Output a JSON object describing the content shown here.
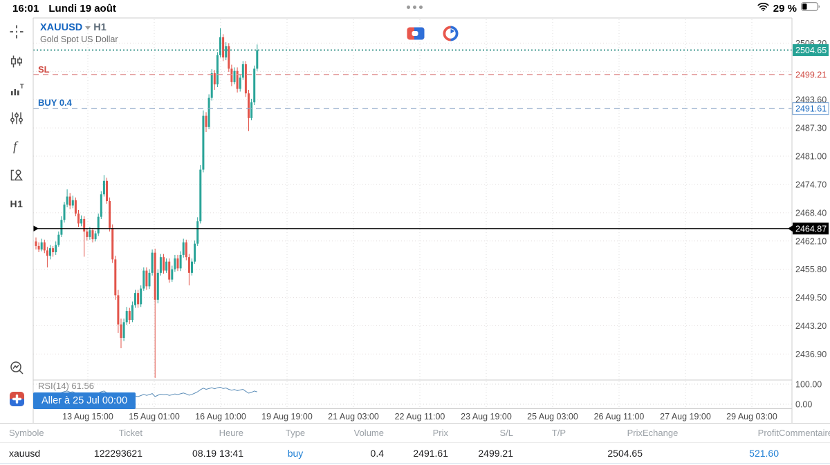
{
  "status_bar": {
    "time": "16:01",
    "date": "Lundi 19 août",
    "battery": "29 %",
    "battery_level": 0.29
  },
  "toolbar": {
    "timeframe_label": "H1"
  },
  "chart_header": {
    "symbol": "XAUUSD",
    "timeframe": "H1",
    "description": "Gold Spot US Dollar"
  },
  "goto_button": {
    "label": "Aller à 25 Jul 00:00"
  },
  "chart_data": {
    "type": "candlestick",
    "symbol": "XAUUSD",
    "timeframe": "H1",
    "colors": {
      "up": "#2aa498",
      "down": "#e2544a",
      "grid": "#e2dcdc",
      "axis_text": "#4f4f4f"
    },
    "y_axis": {
      "tick_top": 2506.2,
      "tick_step": 6.3,
      "tick_count": 12,
      "hidden_tick_labels": [
        2499.9
      ],
      "visible_range": [
        2429.5,
        2511.5
      ]
    },
    "x_axis": {
      "labels": [
        "13 Aug 15:00",
        "15 Aug 01:00",
        "16 Aug 10:00",
        "19 Aug 19:00",
        "21 Aug 03:00",
        "22 Aug 11:00",
        "23 Aug 19:00",
        "25 Aug 03:00",
        "26 Aug 11:00",
        "27 Aug 19:00",
        "29 Aug 03:00"
      ]
    },
    "levels": {
      "current_price": {
        "value": 2504.65,
        "axis_label": "2504.65",
        "color": "#26a295",
        "style": "dotted"
      },
      "stop_loss": {
        "value": 2499.21,
        "label": "SL",
        "axis_label": "2499.21",
        "color": "#cf4a42",
        "line_color": "#e09090",
        "style": "dashed"
      },
      "buy_order": {
        "value": 2491.61,
        "label": "BUY 0.4",
        "axis_label": "2491.61",
        "color": "#1a6ac0",
        "line_color": "#8fa9c8",
        "style": "dashed"
      },
      "crosshair": {
        "value": 2464.87,
        "axis_label": "2464.87",
        "color": "#000000",
        "style": "solid"
      }
    },
    "candles": [
      [
        2462.0,
        2462.9,
        2460.2,
        2461.0
      ],
      [
        2461.0,
        2461.8,
        2459.6,
        2460.2
      ],
      [
        2460.2,
        2462.6,
        2459.8,
        2461.8
      ],
      [
        2461.8,
        2462.4,
        2459.4,
        2460.0
      ],
      [
        2460.0,
        2460.8,
        2456.2,
        2458.8
      ],
      [
        2458.8,
        2461.2,
        2458.0,
        2460.5
      ],
      [
        2460.5,
        2461.0,
        2458.6,
        2459.6
      ],
      [
        2459.6,
        2462.0,
        2459.0,
        2461.2
      ],
      [
        2461.2,
        2464.2,
        2460.8,
        2463.5
      ],
      [
        2463.5,
        2467.6,
        2463.0,
        2466.8
      ],
      [
        2466.8,
        2470.8,
        2466.2,
        2470.2
      ],
      [
        2470.2,
        2473.6,
        2469.6,
        2472.0
      ],
      [
        2472.0,
        2472.8,
        2469.2,
        2470.0
      ],
      [
        2470.0,
        2472.2,
        2469.4,
        2471.2
      ],
      [
        2471.2,
        2471.8,
        2467.6,
        2468.2
      ],
      [
        2468.2,
        2469.0,
        2465.2,
        2466.0
      ],
      [
        2466.0,
        2467.8,
        2465.4,
        2467.0
      ],
      [
        2467.0,
        2467.6,
        2458.6,
        2464.2
      ],
      [
        2464.2,
        2465.0,
        2462.2,
        2463.0
      ],
      [
        2463.0,
        2465.2,
        2462.4,
        2464.5
      ],
      [
        2464.5,
        2465.0,
        2461.8,
        2462.5
      ],
      [
        2462.5,
        2464.4,
        2462.0,
        2463.8
      ],
      [
        2463.8,
        2468.2,
        2463.2,
        2467.5
      ],
      [
        2467.5,
        2473.2,
        2467.0,
        2472.5
      ],
      [
        2472.5,
        2476.8,
        2472.0,
        2475.5
      ],
      [
        2475.5,
        2476.2,
        2470.4,
        2471.0
      ],
      [
        2471.0,
        2471.8,
        2464.2,
        2465.0
      ],
      [
        2465.0,
        2465.8,
        2457.2,
        2458.0
      ],
      [
        2458.0,
        2458.8,
        2449.0,
        2450.0
      ],
      [
        2450.0,
        2451.2,
        2441.6,
        2443.5
      ],
      [
        2443.5,
        2444.8,
        2438.2,
        2440.5
      ],
      [
        2440.5,
        2444.8,
        2439.8,
        2444.0
      ],
      [
        2444.0,
        2447.4,
        2443.4,
        2446.5
      ],
      [
        2446.5,
        2447.2,
        2443.6,
        2444.5
      ],
      [
        2444.5,
        2448.6,
        2444.0,
        2447.8
      ],
      [
        2447.8,
        2451.2,
        2447.2,
        2450.5
      ],
      [
        2450.5,
        2451.2,
        2447.2,
        2448.0
      ],
      [
        2448.0,
        2452.2,
        2447.4,
        2451.5
      ],
      [
        2451.5,
        2456.2,
        2451.0,
        2455.5
      ],
      [
        2455.5,
        2456.2,
        2451.2,
        2452.0
      ],
      [
        2452.0,
        2455.8,
        2451.4,
        2455.0
      ],
      [
        2455.0,
        2460.2,
        2454.4,
        2459.5
      ],
      [
        2459.5,
        2460.4,
        2431.6,
        2449.0
      ],
      [
        2449.0,
        2455.8,
        2448.2,
        2455.0
      ],
      [
        2455.0,
        2459.2,
        2454.4,
        2458.5
      ],
      [
        2458.5,
        2459.2,
        2454.8,
        2455.5
      ],
      [
        2455.5,
        2458.2,
        2455.0,
        2457.5
      ],
      [
        2457.5,
        2458.2,
        2452.8,
        2453.5
      ],
      [
        2453.5,
        2456.6,
        2453.0,
        2455.8
      ],
      [
        2455.8,
        2459.0,
        2455.2,
        2458.2
      ],
      [
        2458.2,
        2459.0,
        2455.4,
        2456.0
      ],
      [
        2456.0,
        2459.8,
        2455.4,
        2459.0
      ],
      [
        2459.0,
        2462.6,
        2458.4,
        2461.8
      ],
      [
        2461.8,
        2462.4,
        2457.8,
        2458.5
      ],
      [
        2458.5,
        2459.2,
        2452.2,
        2455.0
      ],
      [
        2455.0,
        2458.2,
        2454.4,
        2457.5
      ],
      [
        2457.5,
        2462.2,
        2457.0,
        2461.5
      ],
      [
        2461.5,
        2467.4,
        2461.0,
        2466.5
      ],
      [
        2466.5,
        2479.0,
        2466.0,
        2478.0
      ],
      [
        2478.0,
        2491.2,
        2477.4,
        2490.0
      ],
      [
        2490.0,
        2490.8,
        2486.4,
        2487.5
      ],
      [
        2487.5,
        2494.8,
        2487.0,
        2494.0
      ],
      [
        2494.0,
        2500.4,
        2493.4,
        2499.5
      ],
      [
        2499.5,
        2500.2,
        2495.8,
        2497.0
      ],
      [
        2497.0,
        2504.2,
        2496.4,
        2503.5
      ],
      [
        2503.5,
        2509.5,
        2503.0,
        2507.5
      ],
      [
        2507.5,
        2508.2,
        2502.2,
        2503.0
      ],
      [
        2503.0,
        2506.4,
        2502.4,
        2505.5
      ],
      [
        2505.5,
        2506.2,
        2499.8,
        2500.5
      ],
      [
        2500.5,
        2501.4,
        2496.6,
        2497.5
      ],
      [
        2497.5,
        2500.8,
        2497.0,
        2500.0
      ],
      [
        2500.0,
        2500.8,
        2495.2,
        2496.0
      ],
      [
        2496.0,
        2499.2,
        2495.4,
        2498.5
      ],
      [
        2498.5,
        2502.2,
        2498.0,
        2501.5
      ],
      [
        2501.5,
        2502.2,
        2494.2,
        2495.0
      ],
      [
        2495.0,
        2495.8,
        2486.6,
        2489.5
      ],
      [
        2489.5,
        2493.8,
        2489.0,
        2493.0
      ],
      [
        2493.0,
        2501.2,
        2492.4,
        2500.5
      ],
      [
        2500.5,
        2505.9,
        2500.0,
        2504.65
      ]
    ],
    "indicator": {
      "name": "RSI(14)",
      "value": 61.56,
      "label": "RSI(14) 61.56",
      "scale": [
        0,
        100
      ],
      "scale_labels": [
        "100.00",
        "0.00"
      ],
      "line_color": "#5b8db8",
      "values": [
        48,
        47,
        49,
        47,
        45,
        47,
        46,
        48,
        52,
        58,
        63,
        66,
        60,
        62,
        56,
        52,
        54,
        48,
        46,
        49,
        45,
        47,
        55,
        62,
        66,
        57,
        48,
        40,
        33,
        28,
        25,
        31,
        35,
        33,
        37,
        41,
        38,
        43,
        49,
        44,
        48,
        53,
        38,
        45,
        50,
        47,
        49,
        44,
        47,
        51,
        48,
        52,
        56,
        51,
        45,
        49,
        55,
        62,
        72,
        80,
        74,
        78,
        82,
        77,
        82,
        85,
        78,
        81,
        74,
        70,
        73,
        68,
        71,
        74,
        64,
        55,
        59,
        66,
        61.56
      ]
    }
  },
  "table": {
    "headers": [
      "Symbole",
      "Ticket",
      "Heure",
      "Type",
      "Volume",
      "Prix",
      "S/L",
      "T/P",
      "Prix",
      "Echange",
      "Profit",
      "Commentaire"
    ],
    "row": {
      "symbol": "xauusd",
      "ticket": "122293621",
      "heure": "08.19 13:41",
      "type": "buy",
      "volume": "0.4",
      "prix": "2491.61",
      "sl": "2499.21",
      "tp": "",
      "prix2": "2504.65",
      "echange": "",
      "profit": "521.60",
      "commentaire": ""
    }
  }
}
